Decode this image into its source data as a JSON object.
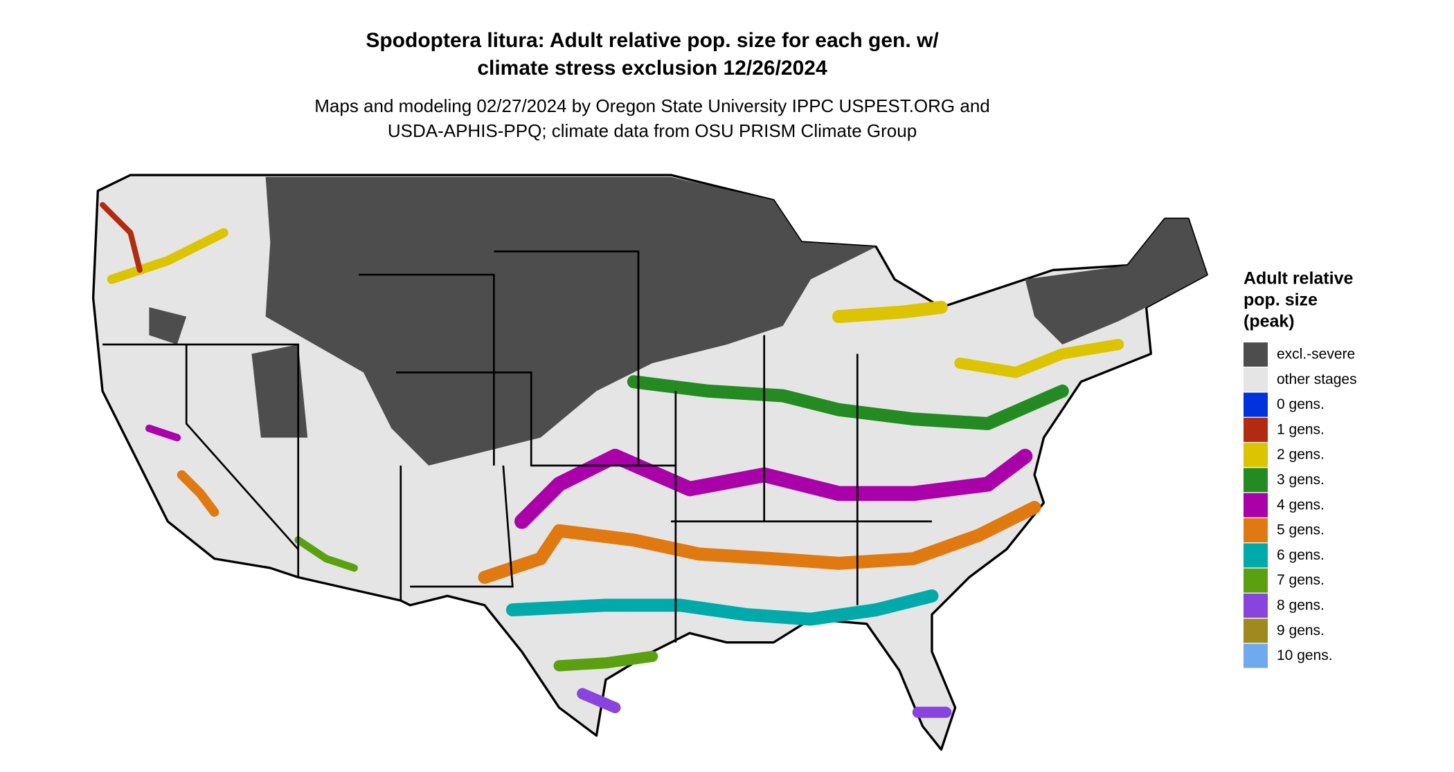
{
  "header": {
    "title": [
      "Spodoptera litura: Adult relative pop. size for each gen. w/",
      "climate stress exclusion 12/26/2024"
    ],
    "subtitle": [
      "Maps and modeling 02/27/2024 by Oregon State University IPPC USPEST.ORG and",
      "USDA-APHIS-PPQ; climate data from OSU PRISM Climate Group"
    ]
  },
  "legend": {
    "title": [
      "Adult relative",
      "pop. size",
      "(peak)"
    ],
    "items": [
      {
        "label": "excl.-severe",
        "color": "#4d4d4d"
      },
      {
        "label": "other stages",
        "color": "#e5e5e5"
      },
      {
        "label": "0 gens.",
        "color": "#0033dd"
      },
      {
        "label": "1 gens.",
        "color": "#b22a10"
      },
      {
        "label": "2 gens.",
        "color": "#dcc400"
      },
      {
        "label": "3 gens.",
        "color": "#238b22"
      },
      {
        "label": "4 gens.",
        "color": "#aa00aa"
      },
      {
        "label": "5 gens.",
        "color": "#e07a10"
      },
      {
        "label": "6 gens.",
        "color": "#00aaaa"
      },
      {
        "label": "7 gens.",
        "color": "#5aa010"
      },
      {
        "label": "8 gens.",
        "color": "#8844dd"
      },
      {
        "label": "9 gens.",
        "color": "#a08a20"
      },
      {
        "label": "10 gens.",
        "color": "#70aaee"
      }
    ]
  }
}
